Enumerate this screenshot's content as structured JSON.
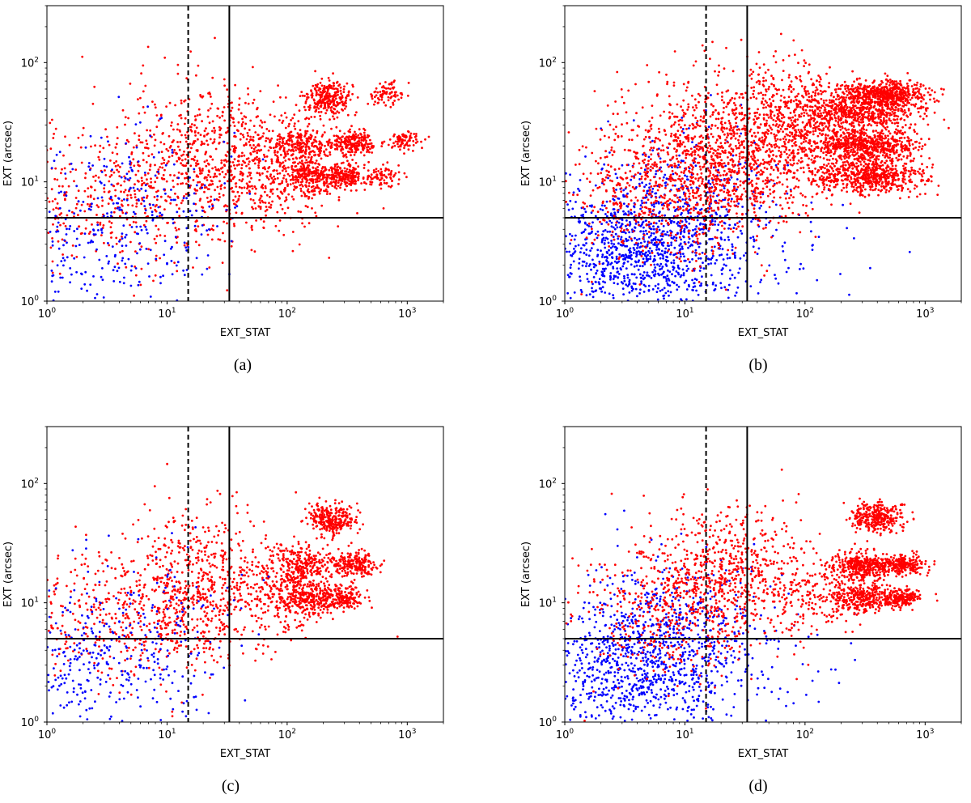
{
  "figure": {
    "panels": [
      {
        "caption": "(a)",
        "chart_index": 0
      },
      {
        "caption": "(b)",
        "chart_index": 1
      },
      {
        "caption": "(c)",
        "chart_index": 2
      },
      {
        "caption": "(d)",
        "chart_index": 3
      }
    ]
  },
  "colors": {
    "red_series": "#ff0000",
    "blue_series": "#0000ff",
    "axes": "#000000"
  },
  "chart_data": [
    {
      "type": "scatter",
      "xlabel": "EXT_STAT",
      "ylabel": "EXT (arcsec)",
      "xscale": "log",
      "yscale": "log",
      "xlim": [
        1,
        2000
      ],
      "ylim": [
        1,
        300
      ],
      "xticks": [
        {
          "value": 1,
          "base": "10",
          "exp": "0"
        },
        {
          "value": 10,
          "base": "10",
          "exp": "1"
        },
        {
          "value": 100,
          "base": "10",
          "exp": "2"
        },
        {
          "value": 1000,
          "base": "10",
          "exp": "3"
        }
      ],
      "yticks": [
        {
          "value": 1,
          "base": "10",
          "exp": "0"
        },
        {
          "value": 10,
          "base": "10",
          "exp": "1"
        },
        {
          "value": 100,
          "base": "10",
          "exp": "2"
        }
      ],
      "reference_lines": [
        {
          "orientation": "vertical",
          "value": 15,
          "style": "dashed"
        },
        {
          "orientation": "vertical",
          "value": 33,
          "style": "solid"
        },
        {
          "orientation": "horizontal",
          "value": 5,
          "style": "solid"
        }
      ],
      "series": [
        {
          "name": "red",
          "color": "#ff0000",
          "clusters": [
            {
              "cx": 5,
              "cy": 8,
              "sx": 0.55,
              "sy": 0.3,
              "n": 520
            },
            {
              "cx": 25,
              "cy": 18,
              "sx": 0.35,
              "sy": 0.3,
              "n": 520
            },
            {
              "cx": 80,
              "cy": 12,
              "sx": 0.25,
              "sy": 0.22,
              "n": 260
            },
            {
              "cx": 220,
              "cy": 50,
              "sx": 0.1,
              "sy": 0.07,
              "n": 280
            },
            {
              "cx": 130,
              "cy": 20,
              "sx": 0.12,
              "sy": 0.08,
              "n": 240
            },
            {
              "cx": 350,
              "cy": 21,
              "sx": 0.1,
              "sy": 0.05,
              "n": 220
            },
            {
              "cx": 160,
              "cy": 11,
              "sx": 0.14,
              "sy": 0.08,
              "n": 240
            },
            {
              "cx": 300,
              "cy": 11,
              "sx": 0.1,
              "sy": 0.05,
              "n": 200
            },
            {
              "cx": 650,
              "cy": 55,
              "sx": 0.08,
              "sy": 0.05,
              "n": 80
            },
            {
              "cx": 950,
              "cy": 22,
              "sx": 0.07,
              "sy": 0.04,
              "n": 80
            },
            {
              "cx": 620,
              "cy": 11,
              "sx": 0.08,
              "sy": 0.05,
              "n": 80
            }
          ]
        },
        {
          "name": "blue",
          "color": "#0000ff",
          "clusters": [
            {
              "cx": 3,
              "cy": 4,
              "sx": 0.45,
              "sy": 0.35,
              "n": 320
            },
            {
              "cx": 12,
              "cy": 9,
              "sx": 0.35,
              "sy": 0.3,
              "n": 60
            }
          ]
        }
      ]
    },
    {
      "type": "scatter",
      "xlabel": "EXT_STAT",
      "ylabel": "EXT (arcsec)",
      "xscale": "log",
      "yscale": "log",
      "xlim": [
        1,
        2000
      ],
      "ylim": [
        1,
        300
      ],
      "xticks": [
        {
          "value": 1,
          "base": "10",
          "exp": "0"
        },
        {
          "value": 10,
          "base": "10",
          "exp": "1"
        },
        {
          "value": 100,
          "base": "10",
          "exp": "2"
        },
        {
          "value": 1000,
          "base": "10",
          "exp": "3"
        }
      ],
      "yticks": [
        {
          "value": 1,
          "base": "10",
          "exp": "0"
        },
        {
          "value": 10,
          "base": "10",
          "exp": "1"
        },
        {
          "value": 100,
          "base": "10",
          "exp": "2"
        }
      ],
      "reference_lines": [
        {
          "orientation": "vertical",
          "value": 15,
          "style": "dashed"
        },
        {
          "orientation": "vertical",
          "value": 33,
          "style": "solid"
        },
        {
          "orientation": "horizontal",
          "value": 5,
          "style": "solid"
        }
      ],
      "series": [
        {
          "name": "blue",
          "color": "#0000ff",
          "clusters": [
            {
              "cx": 4,
              "cy": 2.6,
              "sx": 0.45,
              "sy": 0.28,
              "n": 1100
            },
            {
              "cx": 10,
              "cy": 7,
              "sx": 0.35,
              "sy": 0.28,
              "n": 300
            },
            {
              "cx": 60,
              "cy": 2.5,
              "sx": 0.35,
              "sy": 0.2,
              "n": 35
            }
          ]
        },
        {
          "name": "red",
          "color": "#ff0000",
          "clusters": [
            {
              "cx": 8,
              "cy": 9,
              "sx": 0.45,
              "sy": 0.3,
              "n": 800
            },
            {
              "cx": 30,
              "cy": 20,
              "sx": 0.35,
              "sy": 0.3,
              "n": 900
            },
            {
              "cx": 3,
              "cy": 40,
              "sx": 0.5,
              "sy": 0.45,
              "n": 60
            },
            {
              "cx": 100,
              "cy": 30,
              "sx": 0.25,
              "sy": 0.25,
              "n": 400
            },
            {
              "cx": 280,
              "cy": 40,
              "sx": 0.25,
              "sy": 0.1,
              "n": 700
            },
            {
              "cx": 500,
              "cy": 55,
              "sx": 0.15,
              "sy": 0.05,
              "n": 450
            },
            {
              "cx": 320,
              "cy": 20,
              "sx": 0.22,
              "sy": 0.07,
              "n": 650
            },
            {
              "cx": 350,
              "cy": 11,
              "sx": 0.22,
              "sy": 0.07,
              "n": 600
            }
          ]
        }
      ]
    },
    {
      "type": "scatter",
      "xlabel": "EXT_STAT",
      "ylabel": "EXT (arcsec)",
      "xscale": "log",
      "yscale": "log",
      "xlim": [
        1,
        2000
      ],
      "ylim": [
        1,
        300
      ],
      "xticks": [
        {
          "value": 1,
          "base": "10",
          "exp": "0"
        },
        {
          "value": 10,
          "base": "10",
          "exp": "1"
        },
        {
          "value": 100,
          "base": "10",
          "exp": "2"
        },
        {
          "value": 1000,
          "base": "10",
          "exp": "3"
        }
      ],
      "yticks": [
        {
          "value": 1,
          "base": "10",
          "exp": "0"
        },
        {
          "value": 10,
          "base": "10",
          "exp": "1"
        },
        {
          "value": 100,
          "base": "10",
          "exp": "2"
        }
      ],
      "reference_lines": [
        {
          "orientation": "vertical",
          "value": 15,
          "style": "dashed"
        },
        {
          "orientation": "vertical",
          "value": 33,
          "style": "solid"
        },
        {
          "orientation": "horizontal",
          "value": 5,
          "style": "solid"
        }
      ],
      "series": [
        {
          "name": "red",
          "color": "#ff0000",
          "clusters": [
            {
              "cx": 5,
              "cy": 8,
              "sx": 0.5,
              "sy": 0.3,
              "n": 480
            },
            {
              "cx": 18,
              "cy": 15,
              "sx": 0.3,
              "sy": 0.3,
              "n": 480
            },
            {
              "cx": 70,
              "cy": 12,
              "sx": 0.22,
              "sy": 0.22,
              "n": 220
            },
            {
              "cx": 230,
              "cy": 50,
              "sx": 0.1,
              "sy": 0.07,
              "n": 280
            },
            {
              "cx": 130,
              "cy": 20,
              "sx": 0.12,
              "sy": 0.08,
              "n": 250
            },
            {
              "cx": 360,
              "cy": 21,
              "sx": 0.09,
              "sy": 0.05,
              "n": 220
            },
            {
              "cx": 140,
              "cy": 11,
              "sx": 0.12,
              "sy": 0.08,
              "n": 240
            },
            {
              "cx": 280,
              "cy": 11,
              "sx": 0.1,
              "sy": 0.05,
              "n": 200
            }
          ]
        },
        {
          "name": "blue",
          "color": "#0000ff",
          "clusters": [
            {
              "cx": 3,
              "cy": 3.5,
              "sx": 0.45,
              "sy": 0.35,
              "n": 340
            },
            {
              "cx": 10,
              "cy": 8,
              "sx": 0.35,
              "sy": 0.3,
              "n": 50
            }
          ]
        }
      ]
    },
    {
      "type": "scatter",
      "xlabel": "EXT_STAT",
      "ylabel": "EXT (arcsec)",
      "xscale": "log",
      "yscale": "log",
      "xlim": [
        1,
        2000
      ],
      "ylim": [
        1,
        300
      ],
      "xticks": [
        {
          "value": 1,
          "base": "10",
          "exp": "0"
        },
        {
          "value": 10,
          "base": "10",
          "exp": "1"
        },
        {
          "value": 100,
          "base": "10",
          "exp": "2"
        },
        {
          "value": 1000,
          "base": "10",
          "exp": "3"
        }
      ],
      "yticks": [
        {
          "value": 1,
          "base": "10",
          "exp": "0"
        },
        {
          "value": 10,
          "base": "10",
          "exp": "1"
        },
        {
          "value": 100,
          "base": "10",
          "exp": "2"
        }
      ],
      "reference_lines": [
        {
          "orientation": "vertical",
          "value": 15,
          "style": "dashed"
        },
        {
          "orientation": "vertical",
          "value": 33,
          "style": "solid"
        },
        {
          "orientation": "horizontal",
          "value": 5,
          "style": "solid"
        }
      ],
      "series": [
        {
          "name": "blue",
          "color": "#0000ff",
          "clusters": [
            {
              "cx": 4,
              "cy": 3,
              "sx": 0.45,
              "sy": 0.3,
              "n": 950
            },
            {
              "cx": 10,
              "cy": 8,
              "sx": 0.35,
              "sy": 0.28,
              "n": 220
            },
            {
              "cx": 60,
              "cy": 2.5,
              "sx": 0.35,
              "sy": 0.2,
              "n": 30
            }
          ]
        },
        {
          "name": "red",
          "color": "#ff0000",
          "clusters": [
            {
              "cx": 8,
              "cy": 9,
              "sx": 0.4,
              "sy": 0.28,
              "n": 500
            },
            {
              "cx": 25,
              "cy": 18,
              "sx": 0.3,
              "sy": 0.3,
              "n": 520
            },
            {
              "cx": 400,
              "cy": 52,
              "sx": 0.1,
              "sy": 0.06,
              "n": 320
            },
            {
              "cx": 300,
              "cy": 20,
              "sx": 0.13,
              "sy": 0.06,
              "n": 380
            },
            {
              "cx": 650,
              "cy": 21,
              "sx": 0.09,
              "sy": 0.04,
              "n": 220
            },
            {
              "cx": 300,
              "cy": 11,
              "sx": 0.13,
              "sy": 0.06,
              "n": 320
            },
            {
              "cx": 650,
              "cy": 11,
              "sx": 0.08,
              "sy": 0.04,
              "n": 180
            },
            {
              "cx": 120,
              "cy": 12,
              "sx": 0.2,
              "sy": 0.15,
              "n": 160
            }
          ]
        }
      ]
    }
  ]
}
